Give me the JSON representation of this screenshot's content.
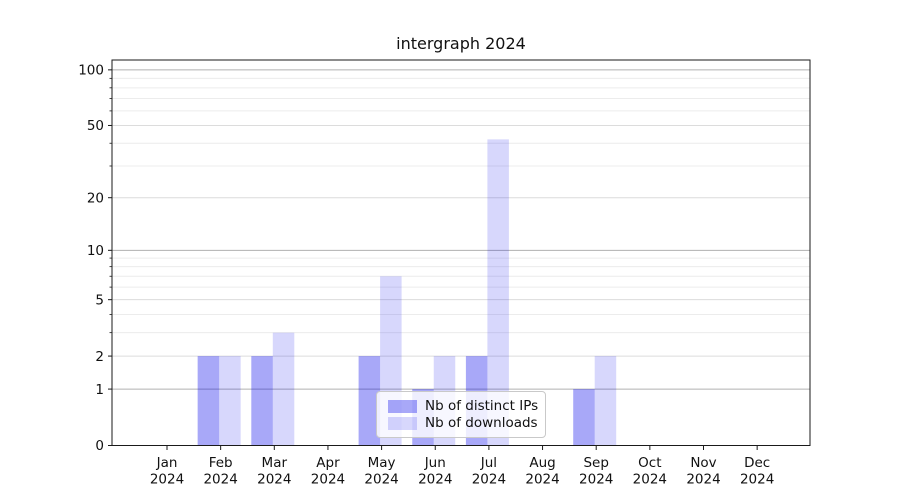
{
  "chart_data": {
    "type": "bar",
    "title": "intergraph 2024",
    "categories": [
      "Jan",
      "Feb",
      "Mar",
      "Apr",
      "May",
      "Jun",
      "Jul",
      "Aug",
      "Sep",
      "Oct",
      "Nov",
      "Dec"
    ],
    "x_year": "2024",
    "series": [
      {
        "name": "Nb of distinct IPs",
        "color": "#a8a8f8",
        "fill": "rgba(0,0,235,0.34)",
        "values": [
          0,
          2,
          2,
          0,
          2,
          1,
          2,
          0,
          1,
          0,
          0,
          0
        ]
      },
      {
        "name": "Nb of downloads",
        "color": "#dcdcfb",
        "fill": "rgba(0,0,235,0.155)",
        "values": [
          0,
          2,
          3,
          0,
          7,
          2,
          42,
          0,
          2,
          0,
          0,
          0
        ]
      }
    ],
    "yscale": "log1p",
    "ylim": [
      0,
      113
    ],
    "yticks": [
      0,
      1,
      2,
      5,
      10,
      20,
      50,
      100
    ],
    "yticks_major": [
      1,
      10,
      100
    ],
    "yticks_minor_labeled": [
      2,
      5,
      20,
      50
    ],
    "yticks_minor": [
      3,
      4,
      6,
      7,
      8,
      9,
      30,
      40,
      60,
      70,
      80,
      90
    ],
    "grid": {
      "major_color": "#b0b0b0",
      "minor_labeled_color": "#dcdcdc",
      "minor_color": "#ececec"
    },
    "axis_color": "#1a1a1a",
    "text_color": "#111111",
    "legend": {
      "position": "lower center",
      "frame": true
    }
  }
}
